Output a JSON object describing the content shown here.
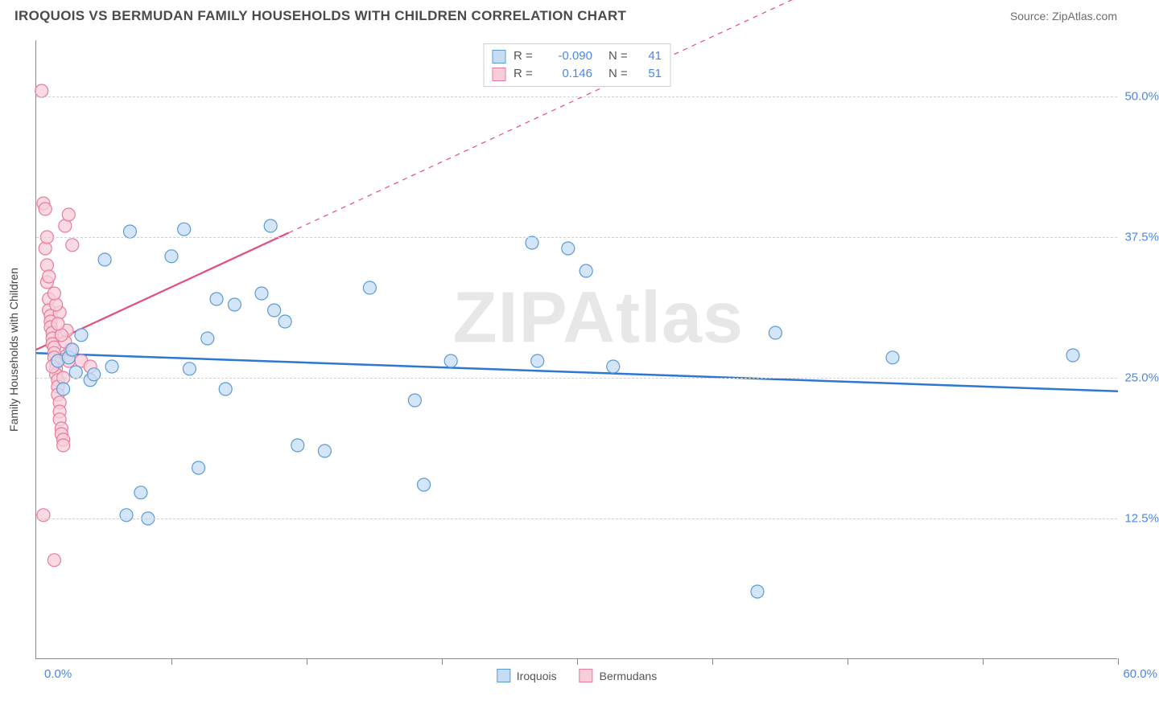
{
  "title": "IROQUOIS VS BERMUDAN FAMILY HOUSEHOLDS WITH CHILDREN CORRELATION CHART",
  "source": "Source: ZipAtlas.com",
  "watermark": "ZIPAtlas",
  "chart": {
    "type": "scatter",
    "ylabel": "Family Households with Children",
    "xlim": [
      0,
      60
    ],
    "ylim": [
      0,
      55
    ],
    "yticks": [
      {
        "v": 12.5,
        "label": "12.5%"
      },
      {
        "v": 25.0,
        "label": "25.0%"
      },
      {
        "v": 37.5,
        "label": "37.5%"
      },
      {
        "v": 50.0,
        "label": "50.0%"
      }
    ],
    "xticks": [
      7.5,
      15,
      22.5,
      30,
      37.5,
      45,
      52.5,
      60
    ],
    "xlabel_min": "0.0%",
    "xlabel_max": "60.0%",
    "background_color": "#ffffff",
    "grid_color": "#d0d0d0",
    "marker_radius": 8,
    "marker_stroke_width": 1.2,
    "series": [
      {
        "name": "Iroquois",
        "fill": "#c5dcf5",
        "stroke": "#5a9bd5",
        "line_color": "#2f76d2",
        "line_width": 2.5,
        "r_label": "R =",
        "r_value": "-0.090",
        "n_label": "N =",
        "n_value": "41",
        "regression": {
          "x1": 0,
          "y1": 27.2,
          "x2": 60,
          "y2": 23.8,
          "dash_from_x": 60
        },
        "points": [
          [
            1.2,
            26.5
          ],
          [
            1.5,
            24.0
          ],
          [
            1.8,
            26.8
          ],
          [
            2.0,
            27.5
          ],
          [
            2.2,
            25.5
          ],
          [
            2.5,
            28.8
          ],
          [
            3.0,
            24.8
          ],
          [
            3.2,
            25.3
          ],
          [
            3.8,
            35.5
          ],
          [
            4.2,
            26.0
          ],
          [
            5.0,
            12.8
          ],
          [
            5.2,
            38.0
          ],
          [
            5.8,
            14.8
          ],
          [
            6.2,
            12.5
          ],
          [
            7.5,
            35.8
          ],
          [
            8.2,
            38.2
          ],
          [
            8.5,
            25.8
          ],
          [
            9.0,
            17.0
          ],
          [
            9.5,
            28.5
          ],
          [
            10.0,
            32.0
          ],
          [
            10.5,
            24.0
          ],
          [
            11.0,
            31.5
          ],
          [
            12.5,
            32.5
          ],
          [
            13.0,
            38.5
          ],
          [
            13.2,
            31.0
          ],
          [
            13.8,
            30.0
          ],
          [
            14.5,
            19.0
          ],
          [
            16.0,
            18.5
          ],
          [
            18.5,
            33.0
          ],
          [
            21.0,
            23.0
          ],
          [
            21.5,
            15.5
          ],
          [
            23.0,
            26.5
          ],
          [
            27.5,
            37.0
          ],
          [
            27.8,
            26.5
          ],
          [
            29.5,
            36.5
          ],
          [
            30.5,
            34.5
          ],
          [
            32.0,
            26.0
          ],
          [
            40.0,
            6.0
          ],
          [
            41.0,
            29.0
          ],
          [
            47.5,
            26.8
          ],
          [
            57.5,
            27.0
          ]
        ]
      },
      {
        "name": "Bermudans",
        "fill": "#f7cdd8",
        "stroke": "#e77b9a",
        "line_color": "#e34d7a",
        "line_width": 2.2,
        "r_label": "R =",
        "r_value": "0.146",
        "n_label": "N =",
        "n_value": "51",
        "regression": {
          "x1": 0,
          "y1": 27.5,
          "x2": 60,
          "y2": 72,
          "dash_from_x": 14
        },
        "points": [
          [
            0.3,
            50.5
          ],
          [
            0.4,
            40.5
          ],
          [
            0.5,
            40.0
          ],
          [
            0.5,
            36.5
          ],
          [
            0.6,
            35.0
          ],
          [
            0.6,
            33.5
          ],
          [
            0.7,
            32.0
          ],
          [
            0.7,
            31.0
          ],
          [
            0.8,
            30.5
          ],
          [
            0.8,
            30.0
          ],
          [
            0.8,
            29.5
          ],
          [
            0.9,
            29.0
          ],
          [
            0.9,
            28.5
          ],
          [
            0.9,
            28.0
          ],
          [
            1.0,
            27.7
          ],
          [
            1.0,
            27.2
          ],
          [
            1.0,
            26.8
          ],
          [
            1.1,
            26.3
          ],
          [
            1.1,
            25.8
          ],
          [
            1.1,
            25.3
          ],
          [
            1.2,
            24.8
          ],
          [
            1.2,
            24.2
          ],
          [
            1.2,
            23.5
          ],
          [
            1.3,
            22.8
          ],
          [
            1.3,
            22.0
          ],
          [
            1.3,
            21.3
          ],
          [
            1.4,
            20.5
          ],
          [
            1.4,
            20.0
          ],
          [
            1.5,
            19.5
          ],
          [
            1.5,
            19.0
          ],
          [
            0.4,
            12.8
          ],
          [
            1.6,
            38.5
          ],
          [
            1.8,
            39.5
          ],
          [
            2.0,
            36.8
          ],
          [
            1.0,
            8.8
          ],
          [
            2.5,
            26.5
          ],
          [
            3.0,
            26.0
          ],
          [
            1.7,
            27.0
          ],
          [
            1.8,
            26.5
          ],
          [
            1.9,
            27.5
          ],
          [
            1.6,
            28.2
          ],
          [
            1.7,
            29.2
          ],
          [
            0.7,
            34.0
          ],
          [
            0.6,
            37.5
          ],
          [
            1.3,
            30.8
          ],
          [
            1.4,
            28.8
          ],
          [
            1.1,
            31.5
          ],
          [
            1.0,
            32.5
          ],
          [
            0.9,
            26.0
          ],
          [
            1.5,
            25.0
          ],
          [
            1.2,
            29.8
          ]
        ]
      }
    ]
  }
}
